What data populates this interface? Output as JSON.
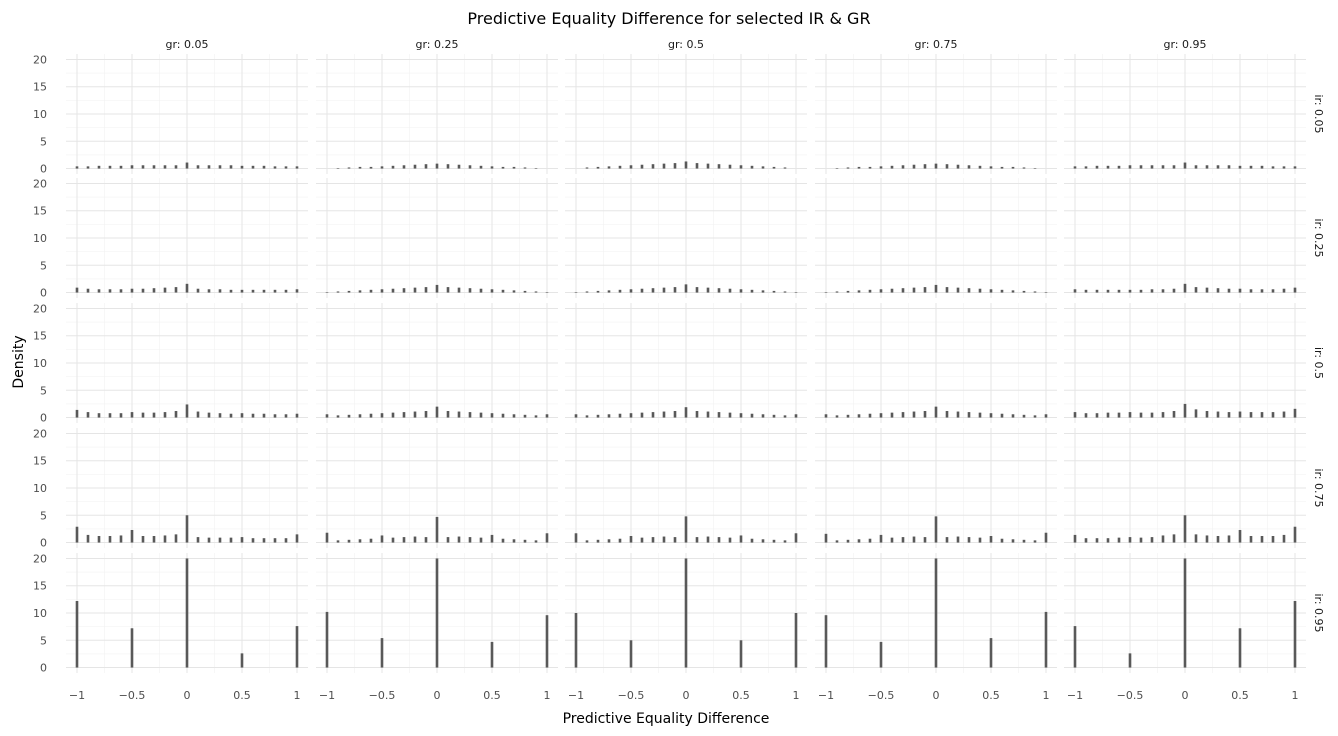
{
  "chart_data": {
    "type": "bar",
    "title": "Predictive Equality Difference for selected IR & GR",
    "xlabel": "Predictive Equality Difference",
    "ylabel": "Density",
    "xlim": [
      -1.1,
      1.1
    ],
    "ylim": [
      -1,
      21
    ],
    "x_ticks": [
      -1,
      -0.5,
      0,
      0.5,
      1
    ],
    "x_tick_labels": [
      "−1",
      "−0.5",
      "0",
      "0.5",
      "1"
    ],
    "y_ticks": [
      0,
      5,
      10,
      15,
      20
    ],
    "y_tick_labels": [
      "0",
      "5",
      "10",
      "15",
      "20"
    ],
    "col_labels": [
      "gr: 0.05",
      "gr: 0.25",
      "gr: 0.5",
      "gr: 0.75",
      "gr: 0.95"
    ],
    "row_labels": [
      "ir: 0.05",
      "ir: 0.25",
      "ir: 0.5",
      "ir: 0.75",
      "ir: 0.95"
    ],
    "grid": true,
    "bar_color": "#595959",
    "panels": [
      [
        {
          "x": [
            -1.0,
            -0.9,
            -0.8,
            -0.7,
            -0.6,
            -0.5,
            -0.4,
            -0.3,
            -0.2,
            -0.1,
            0.0,
            0.1,
            0.2,
            0.3,
            0.4,
            0.5,
            0.6,
            0.7,
            0.8,
            0.9,
            1.0
          ],
          "y": [
            0.4,
            0.4,
            0.5,
            0.5,
            0.5,
            0.6,
            0.6,
            0.6,
            0.6,
            0.6,
            1.1,
            0.6,
            0.6,
            0.6,
            0.6,
            0.5,
            0.5,
            0.5,
            0.4,
            0.4,
            0.4
          ]
        },
        {
          "x": [
            -0.9,
            -0.8,
            -0.7,
            -0.6,
            -0.5,
            -0.4,
            -0.3,
            -0.2,
            -0.1,
            0.0,
            0.1,
            0.2,
            0.3,
            0.4,
            0.5,
            0.6,
            0.7,
            0.8,
            0.9
          ],
          "y": [
            0.1,
            0.2,
            0.3,
            0.3,
            0.4,
            0.5,
            0.6,
            0.7,
            0.8,
            0.9,
            0.8,
            0.7,
            0.6,
            0.5,
            0.4,
            0.3,
            0.3,
            0.2,
            0.1
          ]
        },
        {
          "x": [
            -0.9,
            -0.8,
            -0.7,
            -0.6,
            -0.5,
            -0.4,
            -0.3,
            -0.2,
            -0.1,
            0.0,
            0.1,
            0.2,
            0.3,
            0.4,
            0.5,
            0.6,
            0.7,
            0.8,
            0.9
          ],
          "y": [
            0.2,
            0.3,
            0.4,
            0.5,
            0.6,
            0.7,
            0.8,
            0.9,
            1.0,
            1.3,
            1.0,
            0.9,
            0.8,
            0.7,
            0.6,
            0.5,
            0.4,
            0.3,
            0.2
          ]
        },
        {
          "x": [
            -0.9,
            -0.8,
            -0.7,
            -0.6,
            -0.5,
            -0.4,
            -0.3,
            -0.2,
            -0.1,
            0.0,
            0.1,
            0.2,
            0.3,
            0.4,
            0.5,
            0.6,
            0.7,
            0.8,
            0.9
          ],
          "y": [
            0.1,
            0.2,
            0.3,
            0.3,
            0.4,
            0.5,
            0.6,
            0.7,
            0.8,
            0.9,
            0.8,
            0.7,
            0.6,
            0.5,
            0.4,
            0.3,
            0.3,
            0.2,
            0.1
          ]
        },
        {
          "x": [
            -1.0,
            -0.9,
            -0.8,
            -0.7,
            -0.6,
            -0.5,
            -0.4,
            -0.3,
            -0.2,
            -0.1,
            0.0,
            0.1,
            0.2,
            0.3,
            0.4,
            0.5,
            0.6,
            0.7,
            0.8,
            0.9,
            1.0
          ],
          "y": [
            0.4,
            0.4,
            0.5,
            0.5,
            0.5,
            0.6,
            0.6,
            0.6,
            0.6,
            0.6,
            1.1,
            0.6,
            0.6,
            0.6,
            0.6,
            0.5,
            0.5,
            0.5,
            0.4,
            0.4,
            0.4
          ]
        }
      ],
      [
        {
          "x": [
            -1.0,
            -0.9,
            -0.8,
            -0.7,
            -0.6,
            -0.5,
            -0.4,
            -0.3,
            -0.2,
            -0.1,
            0.0,
            0.1,
            0.2,
            0.3,
            0.4,
            0.5,
            0.6,
            0.7,
            0.8,
            0.9,
            1.0
          ],
          "y": [
            0.9,
            0.7,
            0.6,
            0.6,
            0.6,
            0.7,
            0.7,
            0.8,
            0.9,
            1.0,
            1.6,
            0.7,
            0.6,
            0.6,
            0.5,
            0.5,
            0.5,
            0.5,
            0.5,
            0.5,
            0.6
          ]
        },
        {
          "x": [
            -1.0,
            -0.9,
            -0.8,
            -0.7,
            -0.6,
            -0.5,
            -0.4,
            -0.3,
            -0.2,
            -0.1,
            0.0,
            0.1,
            0.2,
            0.3,
            0.4,
            0.5,
            0.6,
            0.7,
            0.8,
            0.9,
            1.0
          ],
          "y": [
            0.1,
            0.2,
            0.3,
            0.4,
            0.5,
            0.6,
            0.7,
            0.8,
            0.9,
            1.0,
            1.4,
            1.0,
            0.9,
            0.8,
            0.7,
            0.6,
            0.5,
            0.4,
            0.3,
            0.2,
            0.1
          ]
        },
        {
          "x": [
            -1.0,
            -0.9,
            -0.8,
            -0.7,
            -0.6,
            -0.5,
            -0.4,
            -0.3,
            -0.2,
            -0.1,
            0.0,
            0.1,
            0.2,
            0.3,
            0.4,
            0.5,
            0.6,
            0.7,
            0.8,
            0.9,
            1.0
          ],
          "y": [
            0.1,
            0.2,
            0.3,
            0.4,
            0.5,
            0.6,
            0.7,
            0.8,
            0.9,
            1.0,
            1.5,
            1.0,
            0.9,
            0.8,
            0.7,
            0.6,
            0.5,
            0.4,
            0.3,
            0.2,
            0.1
          ]
        },
        {
          "x": [
            -1.0,
            -0.9,
            -0.8,
            -0.7,
            -0.6,
            -0.5,
            -0.4,
            -0.3,
            -0.2,
            -0.1,
            0.0,
            0.1,
            0.2,
            0.3,
            0.4,
            0.5,
            0.6,
            0.7,
            0.8,
            0.9,
            1.0
          ],
          "y": [
            0.1,
            0.2,
            0.3,
            0.4,
            0.5,
            0.6,
            0.7,
            0.8,
            0.9,
            1.0,
            1.4,
            1.0,
            0.9,
            0.8,
            0.7,
            0.6,
            0.5,
            0.4,
            0.3,
            0.2,
            0.1
          ]
        },
        {
          "x": [
            -1.0,
            -0.9,
            -0.8,
            -0.7,
            -0.6,
            -0.5,
            -0.4,
            -0.3,
            -0.2,
            -0.1,
            0.0,
            0.1,
            0.2,
            0.3,
            0.4,
            0.5,
            0.6,
            0.7,
            0.8,
            0.9,
            1.0
          ],
          "y": [
            0.6,
            0.5,
            0.5,
            0.5,
            0.5,
            0.5,
            0.5,
            0.6,
            0.6,
            0.7,
            1.6,
            1.0,
            0.9,
            0.8,
            0.7,
            0.7,
            0.6,
            0.6,
            0.6,
            0.7,
            0.9
          ]
        }
      ],
      [
        {
          "x": [
            -1.0,
            -0.9,
            -0.8,
            -0.7,
            -0.6,
            -0.5,
            -0.4,
            -0.3,
            -0.2,
            -0.1,
            0.0,
            0.1,
            0.2,
            0.3,
            0.4,
            0.5,
            0.6,
            0.7,
            0.8,
            0.9,
            1.0
          ],
          "y": [
            1.4,
            1.0,
            0.8,
            0.8,
            0.8,
            1.0,
            0.9,
            0.9,
            1.0,
            1.2,
            2.4,
            1.1,
            0.9,
            0.8,
            0.7,
            0.8,
            0.7,
            0.7,
            0.6,
            0.6,
            0.7
          ]
        },
        {
          "x": [
            -1.0,
            -0.9,
            -0.8,
            -0.7,
            -0.6,
            -0.5,
            -0.4,
            -0.3,
            -0.2,
            -0.1,
            0.0,
            0.1,
            0.2,
            0.3,
            0.4,
            0.5,
            0.6,
            0.7,
            0.8,
            0.9,
            1.0
          ],
          "y": [
            0.6,
            0.4,
            0.5,
            0.6,
            0.7,
            0.8,
            0.9,
            1.0,
            1.1,
            1.2,
            2.0,
            1.2,
            1.1,
            1.0,
            0.9,
            0.8,
            0.7,
            0.6,
            0.5,
            0.4,
            0.6
          ]
        },
        {
          "x": [
            -1.0,
            -0.9,
            -0.8,
            -0.7,
            -0.6,
            -0.5,
            -0.4,
            -0.3,
            -0.2,
            -0.1,
            0.0,
            0.1,
            0.2,
            0.3,
            0.4,
            0.5,
            0.6,
            0.7,
            0.8,
            0.9,
            1.0
          ],
          "y": [
            0.6,
            0.4,
            0.5,
            0.6,
            0.7,
            0.8,
            0.9,
            1.0,
            1.1,
            1.2,
            1.9,
            1.2,
            1.1,
            1.0,
            0.9,
            0.8,
            0.7,
            0.6,
            0.5,
            0.4,
            0.6
          ]
        },
        {
          "x": [
            -1.0,
            -0.9,
            -0.8,
            -0.7,
            -0.6,
            -0.5,
            -0.4,
            -0.3,
            -0.2,
            -0.1,
            0.0,
            0.1,
            0.2,
            0.3,
            0.4,
            0.5,
            0.6,
            0.7,
            0.8,
            0.9,
            1.0
          ],
          "y": [
            0.6,
            0.4,
            0.5,
            0.6,
            0.7,
            0.8,
            0.9,
            1.0,
            1.1,
            1.2,
            2.0,
            1.2,
            1.1,
            1.0,
            0.9,
            0.8,
            0.7,
            0.6,
            0.5,
            0.4,
            0.6
          ]
        },
        {
          "x": [
            -1.0,
            -0.9,
            -0.8,
            -0.7,
            -0.6,
            -0.5,
            -0.4,
            -0.3,
            -0.2,
            -0.1,
            0.0,
            0.1,
            0.2,
            0.3,
            0.4,
            0.5,
            0.6,
            0.7,
            0.8,
            0.9,
            1.0
          ],
          "y": [
            1.0,
            0.8,
            0.8,
            0.9,
            0.9,
            1.0,
            0.9,
            0.9,
            1.0,
            1.2,
            2.5,
            1.5,
            1.2,
            1.1,
            1.0,
            1.1,
            1.0,
            1.0,
            1.0,
            1.1,
            1.6
          ]
        }
      ],
      [
        {
          "x": [
            -1.0,
            -0.9,
            -0.8,
            -0.7,
            -0.6,
            -0.5,
            -0.4,
            -0.3,
            -0.2,
            -0.1,
            0.0,
            0.1,
            0.2,
            0.3,
            0.4,
            0.5,
            0.6,
            0.7,
            0.8,
            0.9,
            1.0
          ],
          "y": [
            2.9,
            1.4,
            1.2,
            1.2,
            1.3,
            2.3,
            1.2,
            1.2,
            1.3,
            1.5,
            5.0,
            1.0,
            0.9,
            0.9,
            0.9,
            1.0,
            0.8,
            0.8,
            0.8,
            0.8,
            1.5
          ]
        },
        {
          "x": [
            -1.0,
            -0.9,
            -0.8,
            -0.7,
            -0.6,
            -0.5,
            -0.4,
            -0.3,
            -0.2,
            -0.1,
            0.0,
            0.1,
            0.2,
            0.3,
            0.4,
            0.5,
            0.6,
            0.7,
            0.8,
            0.9,
            1.0
          ],
          "y": [
            1.8,
            0.4,
            0.5,
            0.6,
            0.7,
            1.3,
            0.9,
            1.0,
            1.1,
            1.0,
            4.7,
            1.0,
            1.1,
            1.0,
            0.9,
            1.4,
            0.7,
            0.6,
            0.5,
            0.4,
            1.7
          ]
        },
        {
          "x": [
            -1.0,
            -0.9,
            -0.8,
            -0.7,
            -0.6,
            -0.5,
            -0.4,
            -0.3,
            -0.2,
            -0.1,
            0.0,
            0.1,
            0.2,
            0.3,
            0.4,
            0.5,
            0.6,
            0.7,
            0.8,
            0.9,
            1.0
          ],
          "y": [
            1.7,
            0.4,
            0.5,
            0.6,
            0.7,
            1.2,
            0.9,
            1.0,
            1.1,
            1.0,
            4.8,
            1.0,
            1.1,
            1.0,
            0.9,
            1.3,
            0.7,
            0.6,
            0.5,
            0.4,
            1.7
          ]
        },
        {
          "x": [
            -1.0,
            -0.9,
            -0.8,
            -0.7,
            -0.6,
            -0.5,
            -0.4,
            -0.3,
            -0.2,
            -0.1,
            0.0,
            0.1,
            0.2,
            0.3,
            0.4,
            0.5,
            0.6,
            0.7,
            0.8,
            0.9,
            1.0
          ],
          "y": [
            1.6,
            0.4,
            0.5,
            0.6,
            0.7,
            1.4,
            0.9,
            1.0,
            1.1,
            1.0,
            4.8,
            1.0,
            1.1,
            1.0,
            0.9,
            1.2,
            0.7,
            0.6,
            0.5,
            0.4,
            1.8
          ]
        },
        {
          "x": [
            -1.0,
            -0.9,
            -0.8,
            -0.7,
            -0.6,
            -0.5,
            -0.4,
            -0.3,
            -0.2,
            -0.1,
            0.0,
            0.1,
            0.2,
            0.3,
            0.4,
            0.5,
            0.6,
            0.7,
            0.8,
            0.9,
            1.0
          ],
          "y": [
            1.4,
            0.8,
            0.8,
            0.8,
            0.9,
            1.0,
            0.9,
            1.0,
            1.3,
            1.5,
            5.0,
            1.5,
            1.3,
            1.2,
            1.3,
            2.3,
            1.2,
            1.2,
            1.2,
            1.4,
            2.9
          ]
        }
      ],
      [
        {
          "x": [
            -1.0,
            -0.5,
            0.0,
            0.5,
            1.0
          ],
          "y": [
            12.2,
            7.2,
            20.0,
            2.6,
            7.6
          ]
        },
        {
          "x": [
            -1.0,
            -0.5,
            0.0,
            0.5,
            1.0
          ],
          "y": [
            10.2,
            5.4,
            20.0,
            4.7,
            9.6
          ]
        },
        {
          "x": [
            -1.0,
            -0.5,
            0.0,
            0.5,
            1.0
          ],
          "y": [
            10.0,
            5.0,
            20.0,
            5.0,
            10.0
          ]
        },
        {
          "x": [
            -1.0,
            -0.5,
            0.0,
            0.5,
            1.0
          ],
          "y": [
            9.6,
            4.7,
            20.0,
            5.4,
            10.2
          ]
        },
        {
          "x": [
            -1.0,
            -0.5,
            0.0,
            0.5,
            1.0
          ],
          "y": [
            7.6,
            2.6,
            20.0,
            7.2,
            12.2
          ]
        }
      ]
    ]
  }
}
